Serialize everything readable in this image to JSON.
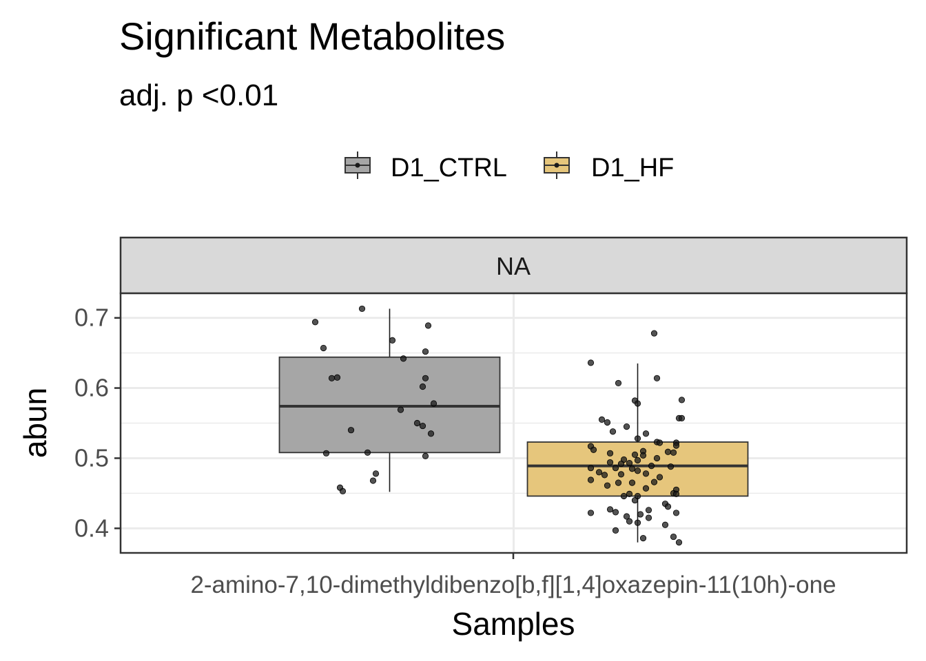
{
  "chart_data": {
    "type": "box",
    "title": "Significant Metabolites",
    "subtitle": "adj. p <0.01",
    "xlabel": "Samples",
    "ylabel": "abun",
    "facet_label": "NA",
    "category": "2-amino-7,10-dimethyldibenzo[b,f][1,4]oxazepin-11(10h)-one",
    "y_ticks": [
      "0.4",
      "0.5",
      "0.6",
      "0.7"
    ],
    "ylim": [
      0.365,
      0.735
    ],
    "grid": true,
    "legend_position": "top",
    "series": [
      {
        "name": "D1_CTRL",
        "color": "#a6a6a6",
        "box": {
          "q1": 0.508,
          "median": 0.574,
          "q3": 0.644,
          "whisker_low": 0.452,
          "whisker_high": 0.713
        },
        "points": [
          {
            "x": -0.1,
            "y": 0.713
          },
          {
            "x": 0.14,
            "y": 0.689
          },
          {
            "x": -0.27,
            "y": 0.694
          },
          {
            "x": 0.01,
            "y": 0.668
          },
          {
            "x": -0.24,
            "y": 0.657
          },
          {
            "x": 0.13,
            "y": 0.652
          },
          {
            "x": 0.05,
            "y": 0.642
          },
          {
            "x": -0.19,
            "y": 0.615
          },
          {
            "x": -0.21,
            "y": 0.614
          },
          {
            "x": 0.13,
            "y": 0.614
          },
          {
            "x": 0.12,
            "y": 0.602
          },
          {
            "x": 0.16,
            "y": 0.578
          },
          {
            "x": 0.04,
            "y": 0.569
          },
          {
            "x": 0.1,
            "y": 0.55
          },
          {
            "x": 0.12,
            "y": 0.546
          },
          {
            "x": -0.14,
            "y": 0.54
          },
          {
            "x": 0.15,
            "y": 0.535
          },
          {
            "x": -0.23,
            "y": 0.507
          },
          {
            "x": -0.08,
            "y": 0.508
          },
          {
            "x": 0.13,
            "y": 0.503
          },
          {
            "x": -0.05,
            "y": 0.478
          },
          {
            "x": -0.06,
            "y": 0.468
          },
          {
            "x": -0.18,
            "y": 0.458
          },
          {
            "x": -0.17,
            "y": 0.453
          }
        ]
      },
      {
        "name": "D1_HF",
        "color": "#e6c67c",
        "box": {
          "q1": 0.446,
          "median": 0.489,
          "q3": 0.523,
          "whisker_low": 0.38,
          "whisker_high": 0.635
        },
        "points": [
          {
            "x": 0.06,
            "y": 0.678
          },
          {
            "x": -0.17,
            "y": 0.636
          },
          {
            "x": 0.07,
            "y": 0.614
          },
          {
            "x": -0.07,
            "y": 0.607
          },
          {
            "x": 0.16,
            "y": 0.583
          },
          {
            "x": -0.01,
            "y": 0.582
          },
          {
            "x": 0.0,
            "y": 0.578
          },
          {
            "x": 0.15,
            "y": 0.557
          },
          {
            "x": 0.16,
            "y": 0.557
          },
          {
            "x": -0.13,
            "y": 0.555
          },
          {
            "x": -0.11,
            "y": 0.551
          },
          {
            "x": -0.04,
            "y": 0.545
          },
          {
            "x": -0.09,
            "y": 0.538
          },
          {
            "x": 0.03,
            "y": 0.535
          },
          {
            "x": 0.0,
            "y": 0.528
          },
          {
            "x": 0.07,
            "y": 0.523
          },
          {
            "x": 0.08,
            "y": 0.522
          },
          {
            "x": 0.14,
            "y": 0.522
          },
          {
            "x": 0.14,
            "y": 0.518
          },
          {
            "x": -0.17,
            "y": 0.517
          },
          {
            "x": -0.16,
            "y": 0.512
          },
          {
            "x": 0.02,
            "y": 0.51
          },
          {
            "x": 0.11,
            "y": 0.509
          },
          {
            "x": 0.13,
            "y": 0.508
          },
          {
            "x": -0.1,
            "y": 0.507
          },
          {
            "x": -0.01,
            "y": 0.505
          },
          {
            "x": 0.02,
            "y": 0.504
          },
          {
            "x": 0.07,
            "y": 0.5
          },
          {
            "x": -0.05,
            "y": 0.498
          },
          {
            "x": 0.0,
            "y": 0.497
          },
          {
            "x": -0.1,
            "y": 0.494
          },
          {
            "x": -0.03,
            "y": 0.493
          },
          {
            "x": -0.06,
            "y": 0.492
          },
          {
            "x": 0.05,
            "y": 0.489
          },
          {
            "x": 0.12,
            "y": 0.488
          },
          {
            "x": -0.08,
            "y": 0.486
          },
          {
            "x": -0.17,
            "y": 0.486
          },
          {
            "x": -0.02,
            "y": 0.485
          },
          {
            "x": 0.0,
            "y": 0.482
          },
          {
            "x": -0.14,
            "y": 0.48
          },
          {
            "x": 0.03,
            "y": 0.478
          },
          {
            "x": -0.06,
            "y": 0.477
          },
          {
            "x": -0.12,
            "y": 0.476
          },
          {
            "x": 0.08,
            "y": 0.473
          },
          {
            "x": -0.17,
            "y": 0.469
          },
          {
            "x": 0.06,
            "y": 0.466
          },
          {
            "x": -0.07,
            "y": 0.465
          },
          {
            "x": -0.02,
            "y": 0.465
          },
          {
            "x": -0.11,
            "y": 0.461
          },
          {
            "x": 0.03,
            "y": 0.457
          },
          {
            "x": 0.14,
            "y": 0.455
          },
          {
            "x": 0.13,
            "y": 0.45
          },
          {
            "x": 0.14,
            "y": 0.449
          },
          {
            "x": -0.03,
            "y": 0.449
          },
          {
            "x": -0.05,
            "y": 0.446
          },
          {
            "x": 0.0,
            "y": 0.446
          },
          {
            "x": -0.01,
            "y": 0.44
          },
          {
            "x": 0.1,
            "y": 0.435
          },
          {
            "x": 0.11,
            "y": 0.431
          },
          {
            "x": -0.1,
            "y": 0.427
          },
          {
            "x": 0.04,
            "y": 0.426
          },
          {
            "x": -0.08,
            "y": 0.423
          },
          {
            "x": -0.17,
            "y": 0.422
          },
          {
            "x": 0.14,
            "y": 0.422
          },
          {
            "x": 0.01,
            "y": 0.42
          },
          {
            "x": -0.04,
            "y": 0.417
          },
          {
            "x": 0.04,
            "y": 0.415
          },
          {
            "x": -0.03,
            "y": 0.41
          },
          {
            "x": 0.0,
            "y": 0.408
          },
          {
            "x": 0.1,
            "y": 0.405
          },
          {
            "x": -0.08,
            "y": 0.397
          },
          {
            "x": 0.13,
            "y": 0.388
          },
          {
            "x": 0.02,
            "y": 0.386
          },
          {
            "x": 0.15,
            "y": 0.38
          }
        ]
      }
    ]
  }
}
